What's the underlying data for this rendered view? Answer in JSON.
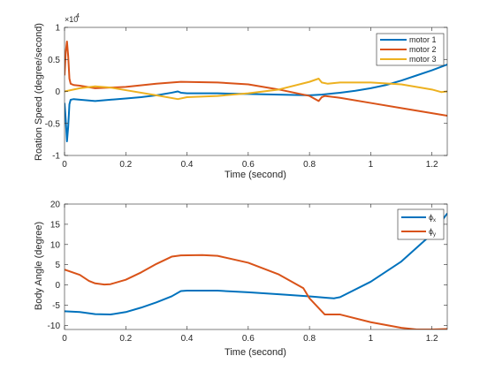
{
  "figure_background": "#ffffff",
  "chart_data": [
    {
      "type": "line",
      "xlabel": "Time (second)",
      "ylabel": "Roation Speed (degree/second)",
      "xlim": [
        0,
        1.25
      ],
      "ylim": [
        -1,
        1
      ],
      "exponent_label": "×10",
      "exponent_power": "4",
      "xticks": [
        "0",
        "0.2",
        "0.4",
        "0.6",
        "0.8",
        "1",
        "1.2"
      ],
      "yticks": [
        "-1",
        "-0.5",
        "0",
        "0.5",
        "1"
      ],
      "legend_position": "top-right",
      "grid": false,
      "series": [
        {
          "name": "motor 1",
          "color": "#0072bd",
          "x": [
            0,
            0.004,
            0.008,
            0.012,
            0.016,
            0.02,
            0.03,
            0.05,
            0.1,
            0.15,
            0.2,
            0.25,
            0.3,
            0.35,
            0.37,
            0.38,
            0.4,
            0.5,
            0.6,
            0.7,
            0.8,
            0.84,
            0.86,
            0.9,
            0.95,
            1.0,
            1.05,
            1.1,
            1.15,
            1.2,
            1.25
          ],
          "y": [
            -0.18,
            -0.45,
            -0.78,
            -0.55,
            -0.2,
            -0.13,
            -0.12,
            -0.13,
            -0.15,
            -0.13,
            -0.11,
            -0.09,
            -0.06,
            -0.02,
            0.0,
            -0.02,
            -0.03,
            -0.03,
            -0.04,
            -0.05,
            -0.06,
            -0.05,
            -0.04,
            -0.02,
            0.01,
            0.05,
            0.1,
            0.17,
            0.25,
            0.33,
            0.42
          ]
        },
        {
          "name": "motor 2",
          "color": "#d95319",
          "x": [
            0,
            0.004,
            0.008,
            0.012,
            0.016,
            0.02,
            0.03,
            0.05,
            0.1,
            0.2,
            0.3,
            0.38,
            0.5,
            0.6,
            0.7,
            0.8,
            0.83,
            0.84,
            0.85,
            0.9,
            1.0,
            1.1,
            1.2,
            1.25
          ],
          "y": [
            0.25,
            0.62,
            0.78,
            0.55,
            0.2,
            0.12,
            0.1,
            0.09,
            0.05,
            0.07,
            0.12,
            0.15,
            0.14,
            0.11,
            0.03,
            -0.07,
            -0.15,
            -0.09,
            -0.07,
            -0.1,
            -0.18,
            -0.26,
            -0.34,
            -0.38
          ]
        },
        {
          "name": "motor 3",
          "color": "#edb120",
          "x": [
            0,
            0.05,
            0.1,
            0.15,
            0.2,
            0.3,
            0.37,
            0.4,
            0.5,
            0.6,
            0.7,
            0.8,
            0.83,
            0.84,
            0.86,
            0.9,
            1.0,
            1.1,
            1.2,
            1.23,
            1.25
          ],
          "y": [
            0.0,
            0.05,
            0.08,
            0.06,
            0.02,
            -0.06,
            -0.12,
            -0.09,
            -0.07,
            -0.03,
            0.03,
            0.15,
            0.2,
            0.14,
            0.12,
            0.14,
            0.14,
            0.11,
            0.03,
            -0.01,
            0.0
          ]
        }
      ]
    },
    {
      "type": "line",
      "xlabel": "Time (second)",
      "ylabel": "Body Angle (degree)",
      "xlim": [
        0,
        1.25
      ],
      "ylim": [
        -11,
        20
      ],
      "xticks": [
        "0",
        "0.2",
        "0.4",
        "0.6",
        "0.8",
        "1",
        "1.2"
      ],
      "yticks": [
        "-10",
        "-5",
        "0",
        "5",
        "10",
        "15",
        "20"
      ],
      "legend_position": "top-right",
      "grid": false,
      "series": [
        {
          "name_symbol": "ϕ",
          "name_subscript": "x",
          "color": "#0072bd",
          "x": [
            0,
            0.05,
            0.1,
            0.15,
            0.2,
            0.25,
            0.3,
            0.35,
            0.38,
            0.4,
            0.5,
            0.6,
            0.7,
            0.8,
            0.86,
            0.88,
            0.9,
            1.0,
            1.1,
            1.2,
            1.25
          ],
          "y": [
            -6.5,
            -6.7,
            -7.2,
            -7.3,
            -6.7,
            -5.6,
            -4.3,
            -2.8,
            -1.5,
            -1.4,
            -1.4,
            -1.8,
            -2.3,
            -2.8,
            -3.2,
            -3.3,
            -3.0,
            0.8,
            5.8,
            12.6,
            17.7
          ]
        },
        {
          "name_symbol": "ϕ",
          "name_subscript": "y",
          "color": "#d95319",
          "x": [
            0,
            0.05,
            0.08,
            0.1,
            0.13,
            0.15,
            0.2,
            0.25,
            0.3,
            0.35,
            0.38,
            0.45,
            0.5,
            0.6,
            0.7,
            0.78,
            0.8,
            0.84,
            0.85,
            0.9,
            1.0,
            1.1,
            1.15,
            1.2,
            1.25
          ],
          "y": [
            3.8,
            2.5,
            1.0,
            0.4,
            0.1,
            0.2,
            1.3,
            3.1,
            5.2,
            7.0,
            7.3,
            7.4,
            7.2,
            5.5,
            2.6,
            -0.8,
            -3.3,
            -6.5,
            -7.3,
            -7.3,
            -9.2,
            -10.6,
            -11.0,
            -11.0,
            -10.9
          ]
        }
      ]
    }
  ]
}
